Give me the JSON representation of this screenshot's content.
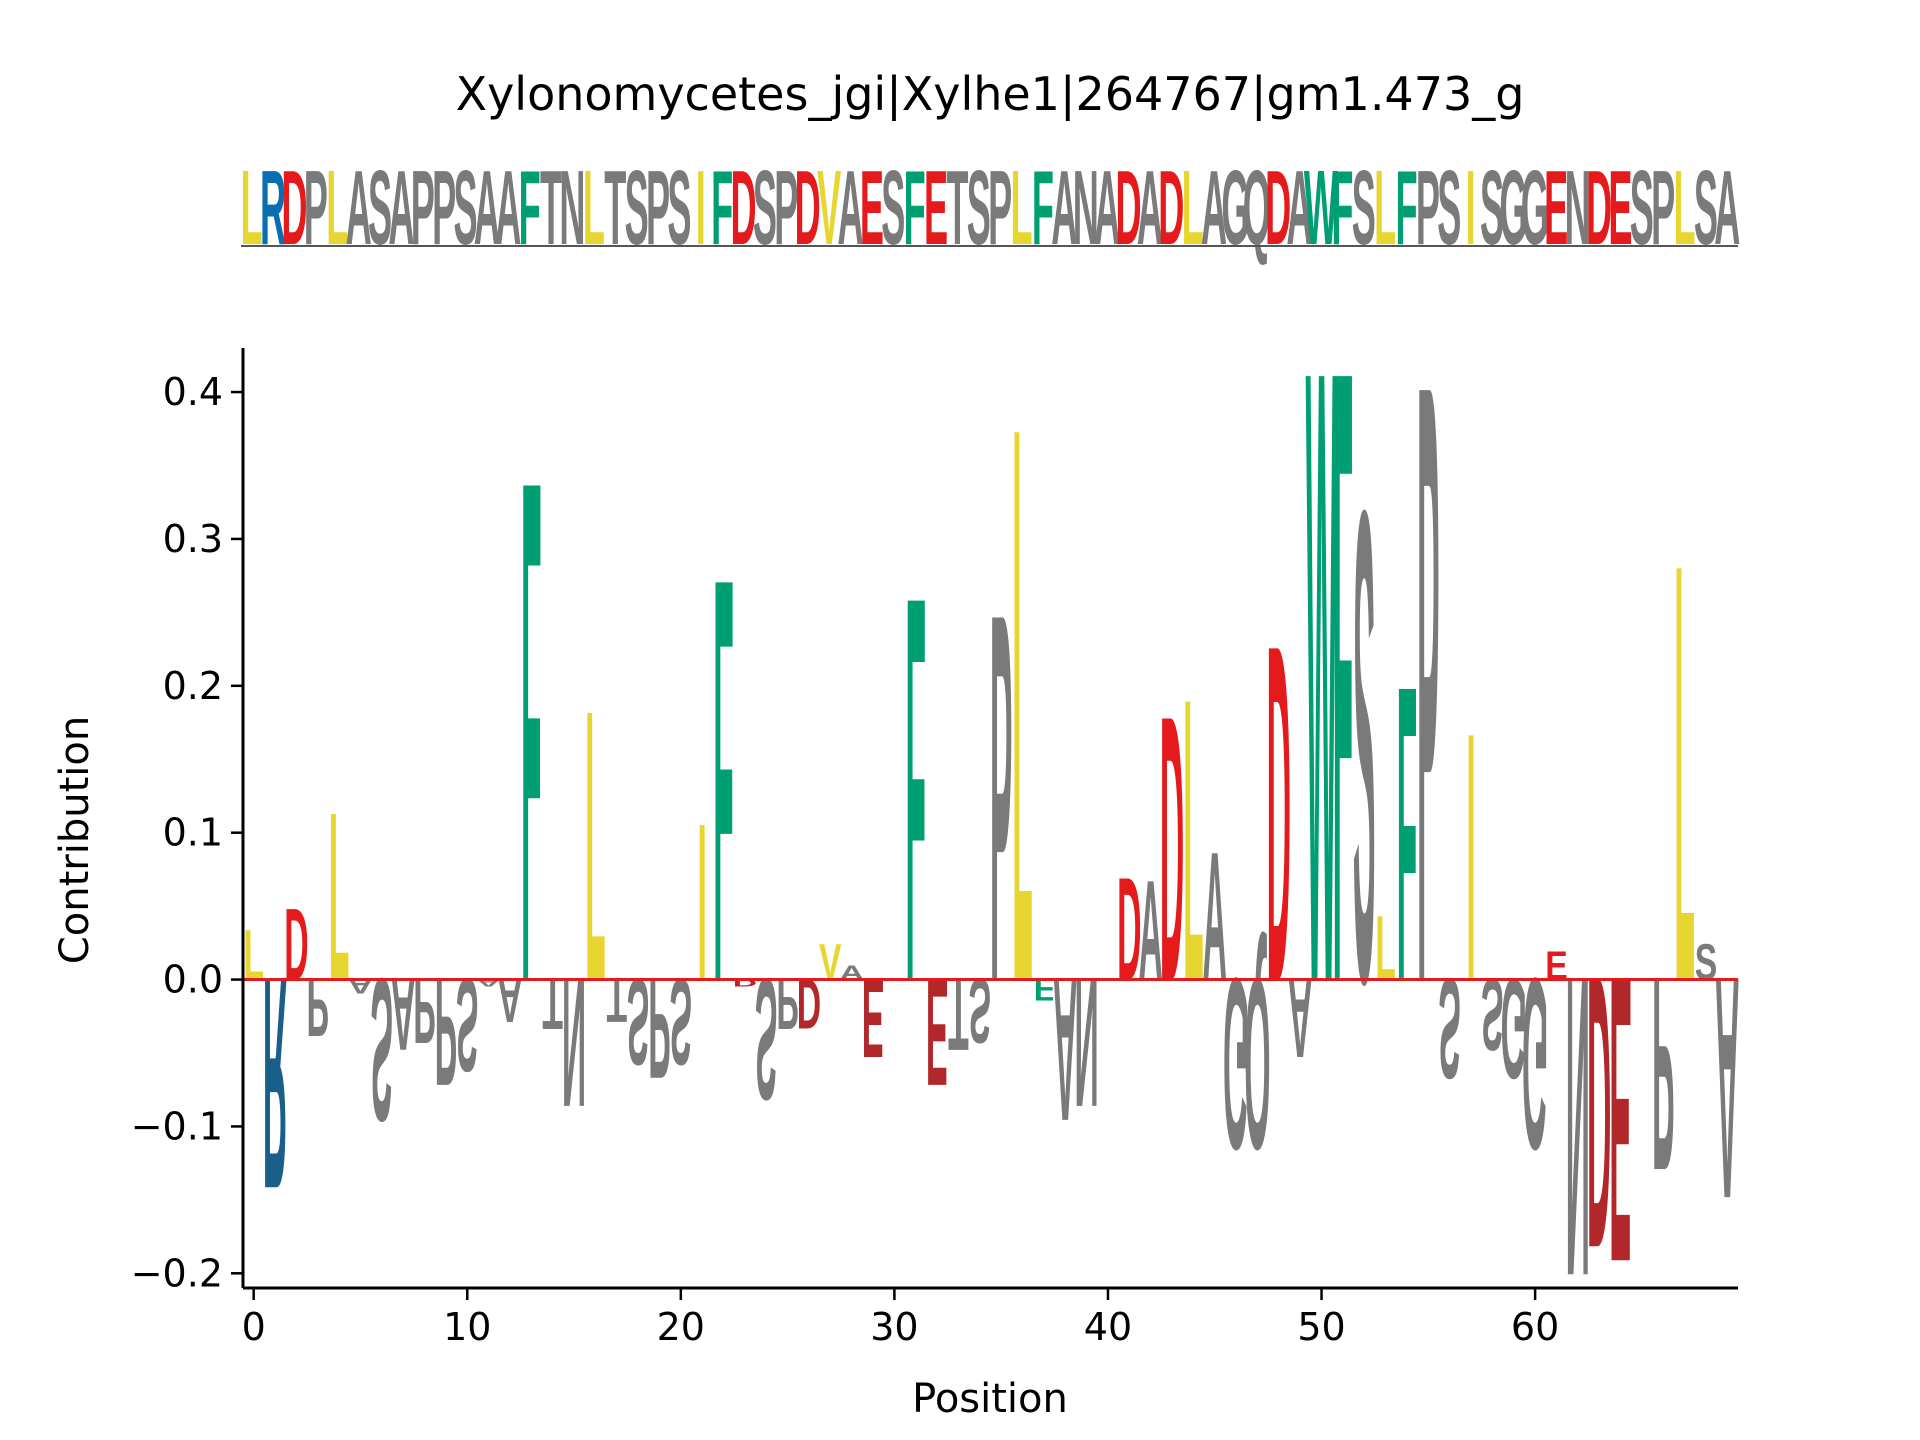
{
  "chart_data": {
    "type": "sequence_logo",
    "title": "Xylonomycetes_jgi|Xylhe1|264767|gm1.473_g",
    "xlabel": "Position",
    "ylabel": "Contribution",
    "sequence": "LRDPLASAPPSAAFTNLTSPSIFDSPDVAESFETSPLFANADADLAGQDAWFSLFPSISGGENDESPLSA",
    "xlim": [
      -0.5,
      69.5
    ],
    "ylim": [
      -0.21,
      0.43
    ],
    "xticks": [
      0,
      10,
      20,
      30,
      40,
      50,
      60
    ],
    "yticks": [
      -0.2,
      -0.1,
      0.0,
      0.1,
      0.2,
      0.3,
      0.4
    ],
    "ytick_labels": [
      "−0.2",
      "−0.1",
      "0.0",
      "0.1",
      "0.2",
      "0.3",
      "0.4"
    ],
    "xtick_labels": [
      "0",
      "10",
      "20",
      "30",
      "40",
      "50",
      "60"
    ],
    "baseline_color": "#e41a1c",
    "letter_colors": {
      "hydrophobic": "#e8d630",
      "aromatic": "#009e73",
      "acidic": "#e41a1c",
      "acidic_negative": "#b2282a",
      "basic": "#1a5e8a",
      "basic_sequence": "#0a6fb0",
      "other": "#7a7a7a"
    },
    "values": [
      0.035,
      -0.148,
      0.05,
      -0.04,
      0.118,
      -0.01,
      -0.1,
      -0.05,
      -0.045,
      -0.075,
      -0.065,
      -0.005,
      -0.03,
      0.352,
      -0.035,
      -0.09,
      0.19,
      -0.03,
      -0.06,
      -0.07,
      -0.06,
      0.11,
      0.283,
      -0.005,
      -0.085,
      -0.035,
      -0.035,
      0.025,
      0.01,
      -0.055,
      0.0,
      0.27,
      -0.075,
      -0.05,
      -0.045,
      0.258,
      0.39,
      -0.015,
      -0.1,
      -0.09,
      0.0,
      0.072,
      0.07,
      0.186,
      0.198,
      0.09,
      -0.12,
      -0.12,
      0.236,
      -0.055,
      0.43,
      0.43,
      0.33,
      0.045,
      0.207,
      0.42,
      -0.07,
      0.174,
      -0.05,
      -0.07,
      -0.12,
      0.02,
      -0.21,
      -0.19,
      -0.2,
      0.0,
      -0.135,
      0.293,
      0.025,
      -0.155
    ]
  }
}
